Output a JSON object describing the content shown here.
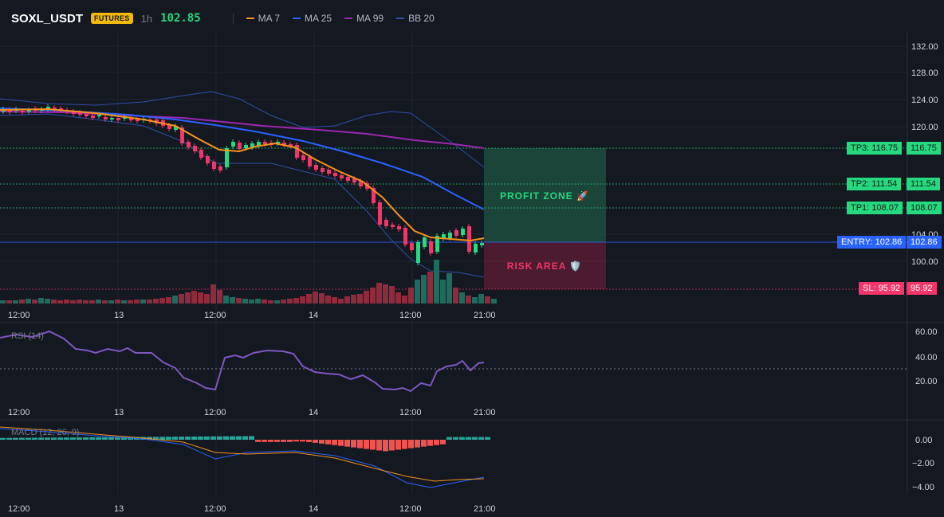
{
  "header": {
    "symbol": "SOXL_USDT",
    "badge": "FUTURES",
    "timeframe": "1h",
    "last_price": "102.85",
    "legend": [
      {
        "label": "MA 7",
        "color": "#f7931a"
      },
      {
        "label": "MA 25",
        "color": "#2962ff"
      },
      {
        "label": "MA 99",
        "color": "#9c27b0"
      },
      {
        "label": "BB 20",
        "color": "#2f4fa8"
      }
    ]
  },
  "colors": {
    "up": "#26d97f",
    "down": "#f23669",
    "vol_up": "#1f6b5e",
    "vol_down": "#8e2b3d",
    "entry": "#2962ff",
    "tp": "#26d97f",
    "sl": "#f23669"
  },
  "price_axis": [
    "132.00",
    "128.00",
    "124.00",
    "120.00",
    "104.00",
    "100.00"
  ],
  "time_axis": [
    "12:00",
    "13",
    "12:00",
    "14",
    "12:00",
    "21:00"
  ],
  "levels": {
    "tp3": {
      "label": "TP3: 116.75",
      "value": "116.75"
    },
    "tp2": {
      "label": "TP2: 111.54",
      "value": "111.54"
    },
    "tp1": {
      "label": "TP1: 108.07",
      "value": "108.07"
    },
    "entry": {
      "label": "ENTRY: 102.86",
      "value": "102.86"
    },
    "sl": {
      "label": "SL: 95.92",
      "value": "95.92"
    }
  },
  "zones": {
    "profit": "PROFIT ZONE 🚀",
    "risk": "RISK AREA 🛡️"
  },
  "rsi": {
    "label": "RSI (14)",
    "axis": [
      "60.00",
      "40.00",
      "20.00"
    ]
  },
  "macd": {
    "label": "MACD (12, 26, 9)",
    "axis": [
      "0.00",
      "−2.00",
      "−4.00"
    ]
  }
}
